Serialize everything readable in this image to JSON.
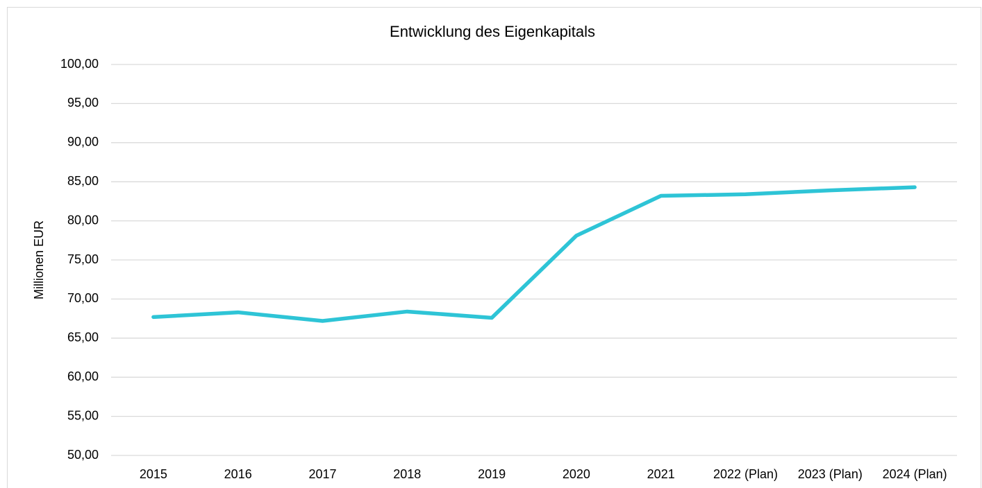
{
  "chart_data": {
    "type": "line",
    "title": "Entwicklung des Eigenkapitals",
    "y_label": "Millionen EUR",
    "categories": [
      "2015",
      "2016",
      "2017",
      "2018",
      "2019",
      "2020",
      "2021",
      "2022 (Plan)",
      "2023 (Plan)",
      "2024 (Plan)"
    ],
    "series": [
      {
        "name": "Eigenkapital",
        "color": "#2ec4d6",
        "values": [
          67.7,
          68.3,
          67.2,
          68.4,
          67.6,
          78.1,
          83.2,
          83.4,
          83.9,
          84.3
        ]
      }
    ],
    "ylim": [
      50,
      100
    ],
    "yticks": [
      {
        "value": 50,
        "label": "50,00"
      },
      {
        "value": 55,
        "label": "55,00"
      },
      {
        "value": 60,
        "label": "60,00"
      },
      {
        "value": 65,
        "label": "65,00"
      },
      {
        "value": 70,
        "label": "70,00"
      },
      {
        "value": 75,
        "label": "75,00"
      },
      {
        "value": 80,
        "label": "80,00"
      },
      {
        "value": 85,
        "label": "85,00"
      },
      {
        "value": 90,
        "label": "90,00"
      },
      {
        "value": 95,
        "label": "95,00"
      },
      {
        "value": 100,
        "label": "100,00"
      }
    ],
    "grid": true
  }
}
